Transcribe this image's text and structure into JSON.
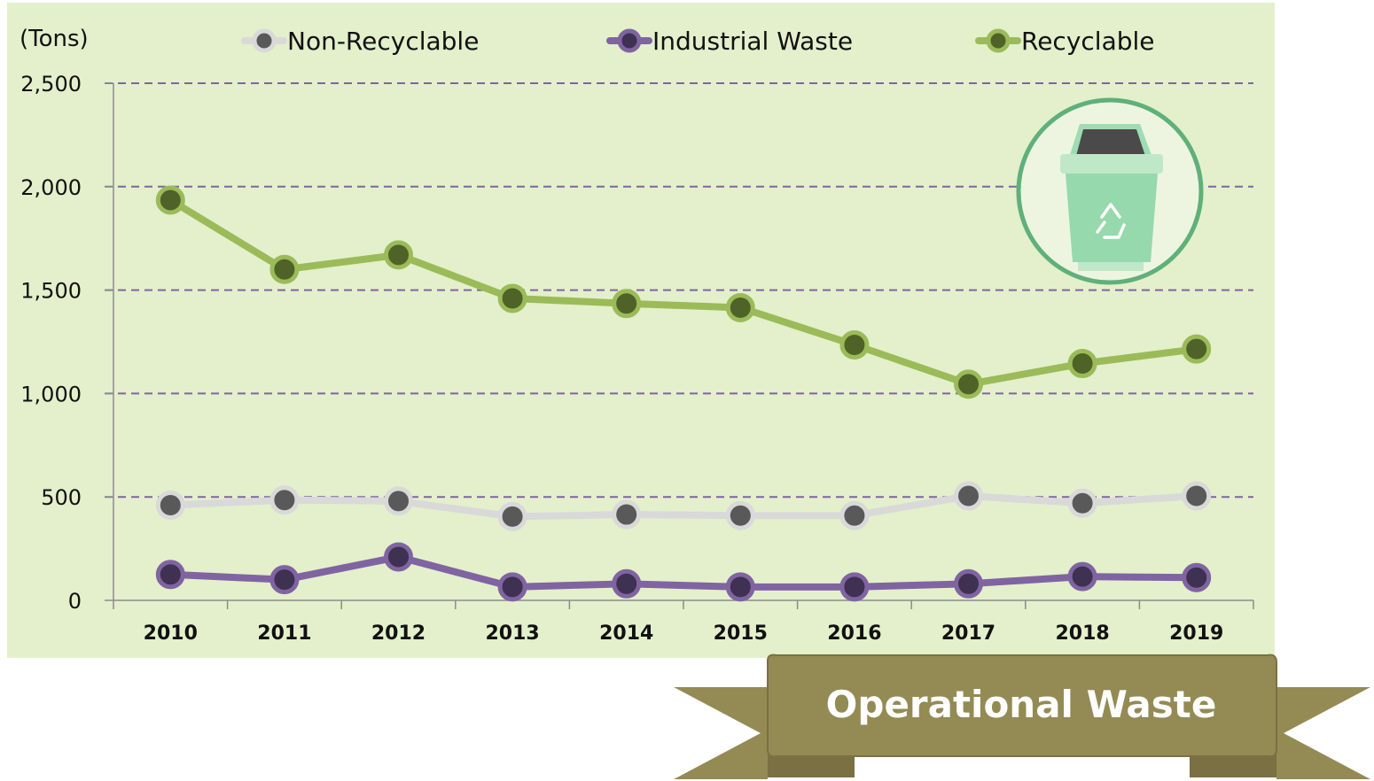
{
  "chart_data": {
    "type": "line",
    "unit_label": "(Tons)",
    "categories": [
      "2010",
      "2011",
      "2012",
      "2013",
      "2014",
      "2015",
      "2016",
      "2017",
      "2018",
      "2019"
    ],
    "y_ticks": [
      "0",
      "500",
      "1,000",
      "1,500",
      "2,000",
      "2,500"
    ],
    "ylim": [
      0,
      2500
    ],
    "grid": "horizontal dashed",
    "legend_position": "top",
    "series": [
      {
        "name": "Non-Recyclable",
        "line_color": "#d9d9d9",
        "marker_color": "#595959",
        "values": [
          460,
          485,
          480,
          405,
          415,
          410,
          410,
          505,
          470,
          505
        ]
      },
      {
        "name": "Industrial Waste",
        "line_color": "#8064a2",
        "marker_color": "#3f3151",
        "values": [
          125,
          100,
          210,
          65,
          80,
          65,
          65,
          80,
          115,
          110
        ]
      },
      {
        "name": "Recyclable",
        "line_color": "#9bbb59",
        "marker_color": "#4f6228",
        "values": [
          1935,
          1600,
          1670,
          1460,
          1435,
          1415,
          1235,
          1045,
          1145,
          1215
        ]
      }
    ]
  },
  "banner": {
    "title": "Operational Waste"
  },
  "icon": {
    "name": "recycle-bin-icon"
  },
  "colors": {
    "plot_background": "#e3f0cb",
    "grid": "#8064a2",
    "banner": "#948a54"
  }
}
